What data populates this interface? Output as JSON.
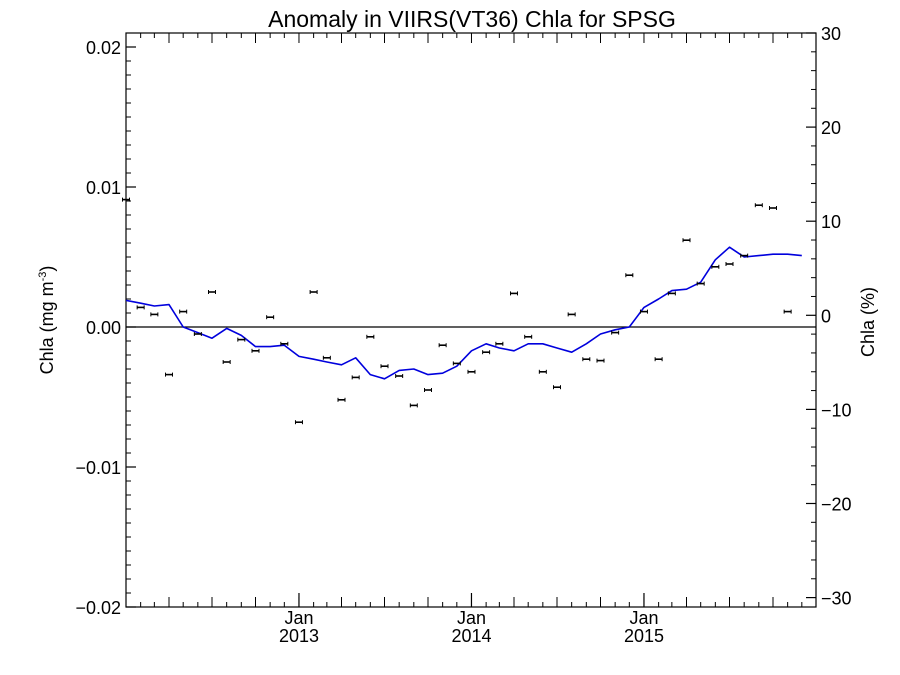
{
  "chart_data": {
    "type": "line",
    "title": "Anomaly in VIIRS(VT36) Chla for SPSG",
    "ylabel_left_main": "Chla (mg m",
    "ylabel_left_sup": "-3",
    "ylabel_left_close": ")",
    "ylabel_right": "Chla (%)",
    "xlim": [
      "2012-01-01",
      "2015-12-31"
    ],
    "ylim_left": [
      -0.02,
      0.021
    ],
    "ylim_right": [
      -31,
      30
    ],
    "y_ticks_left": [
      {
        "value": -0.02,
        "label": "−0.02"
      },
      {
        "value": -0.01,
        "label": "−0.01"
      },
      {
        "value": 0.0,
        "label": "0.00"
      },
      {
        "value": 0.01,
        "label": "0.01"
      },
      {
        "value": 0.02,
        "label": "0.02"
      }
    ],
    "y_ticks_right": [
      {
        "value": -30,
        "label": "−30"
      },
      {
        "value": -20,
        "label": "−20"
      },
      {
        "value": -10,
        "label": "−10"
      },
      {
        "value": 0,
        "label": "0"
      },
      {
        "value": 10,
        "label": "10"
      },
      {
        "value": 20,
        "label": "20"
      },
      {
        "value": 30,
        "label": "30"
      }
    ],
    "x_ticks": [
      {
        "date": "2013-01-01",
        "month": "Jan",
        "year": "2013"
      },
      {
        "date": "2014-01-01",
        "month": "Jan",
        "year": "2014"
      },
      {
        "date": "2015-01-01",
        "month": "Jan",
        "year": "2015"
      }
    ],
    "zero_line": 0,
    "colors": {
      "line": "#0000dd",
      "points": "#000000",
      "axes": "#000000"
    },
    "series": [
      {
        "kind": "points_with_error_bars",
        "axis": "left",
        "points": [
          {
            "x": "2012-01-01",
            "y": 0.0091
          },
          {
            "x": "2012-02-01",
            "y": 0.0014
          },
          {
            "x": "2012-03-01",
            "y": 0.0009
          },
          {
            "x": "2012-04-01",
            "y": -0.0034
          },
          {
            "x": "2012-05-01",
            "y": 0.0011
          },
          {
            "x": "2012-06-01",
            "y": -0.0005
          },
          {
            "x": "2012-07-01",
            "y": 0.0025
          },
          {
            "x": "2012-08-01",
            "y": -0.0025
          },
          {
            "x": "2012-09-01",
            "y": -0.0009
          },
          {
            "x": "2012-10-01",
            "y": -0.0017
          },
          {
            "x": "2012-11-01",
            "y": 0.0007
          },
          {
            "x": "2012-12-01",
            "y": -0.0012
          },
          {
            "x": "2013-01-01",
            "y": -0.0068
          },
          {
            "x": "2013-02-01",
            "y": 0.0025
          },
          {
            "x": "2013-03-01",
            "y": -0.0022
          },
          {
            "x": "2013-04-01",
            "y": -0.0052
          },
          {
            "x": "2013-05-01",
            "y": -0.0036
          },
          {
            "x": "2013-06-01",
            "y": -0.0007
          },
          {
            "x": "2013-07-01",
            "y": -0.0028
          },
          {
            "x": "2013-08-01",
            "y": -0.0035
          },
          {
            "x": "2013-09-01",
            "y": -0.0056
          },
          {
            "x": "2013-10-01",
            "y": -0.0045
          },
          {
            "x": "2013-11-01",
            "y": -0.0013
          },
          {
            "x": "2013-12-01",
            "y": -0.0026
          },
          {
            "x": "2014-01-01",
            "y": -0.0032
          },
          {
            "x": "2014-02-01",
            "y": -0.0018
          },
          {
            "x": "2014-03-01",
            "y": -0.0012
          },
          {
            "x": "2014-04-01",
            "y": 0.0024
          },
          {
            "x": "2014-05-01",
            "y": -0.0007
          },
          {
            "x": "2014-06-01",
            "y": -0.0032
          },
          {
            "x": "2014-07-01",
            "y": -0.0043
          },
          {
            "x": "2014-08-01",
            "y": 0.0009
          },
          {
            "x": "2014-09-01",
            "y": -0.0023
          },
          {
            "x": "2014-10-01",
            "y": -0.0024
          },
          {
            "x": "2014-11-01",
            "y": -0.0004
          },
          {
            "x": "2014-12-01",
            "y": 0.0037
          },
          {
            "x": "2015-01-01",
            "y": 0.0011
          },
          {
            "x": "2015-02-01",
            "y": -0.0023
          },
          {
            "x": "2015-03-01",
            "y": 0.0024
          },
          {
            "x": "2015-04-01",
            "y": 0.0062
          },
          {
            "x": "2015-05-01",
            "y": 0.0031
          },
          {
            "x": "2015-06-01",
            "y": 0.0043
          },
          {
            "x": "2015-07-01",
            "y": 0.0045
          },
          {
            "x": "2015-08-01",
            "y": 0.0051
          },
          {
            "x": "2015-09-01",
            "y": 0.0087
          },
          {
            "x": "2015-10-01",
            "y": 0.0085
          },
          {
            "x": "2015-11-01",
            "y": 0.0011
          }
        ]
      },
      {
        "kind": "line",
        "axis": "left",
        "points": [
          {
            "x": "2012-01-01",
            "y": 0.0019
          },
          {
            "x": "2012-02-01",
            "y": 0.0017
          },
          {
            "x": "2012-03-01",
            "y": 0.0015
          },
          {
            "x": "2012-04-01",
            "y": 0.0016
          },
          {
            "x": "2012-05-01",
            "y": 0.0
          },
          {
            "x": "2012-06-01",
            "y": -0.0004
          },
          {
            "x": "2012-07-01",
            "y": -0.0008
          },
          {
            "x": "2012-08-01",
            "y": -0.0001
          },
          {
            "x": "2012-09-01",
            "y": -0.0006
          },
          {
            "x": "2012-10-01",
            "y": -0.0014
          },
          {
            "x": "2012-11-01",
            "y": -0.0014
          },
          {
            "x": "2012-12-01",
            "y": -0.0013
          },
          {
            "x": "2013-01-01",
            "y": -0.0021
          },
          {
            "x": "2013-02-01",
            "y": -0.0023
          },
          {
            "x": "2013-03-01",
            "y": -0.0025
          },
          {
            "x": "2013-04-01",
            "y": -0.0027
          },
          {
            "x": "2013-05-01",
            "y": -0.0022
          },
          {
            "x": "2013-06-01",
            "y": -0.0034
          },
          {
            "x": "2013-07-01",
            "y": -0.0037
          },
          {
            "x": "2013-08-01",
            "y": -0.0031
          },
          {
            "x": "2013-09-01",
            "y": -0.003
          },
          {
            "x": "2013-10-01",
            "y": -0.0034
          },
          {
            "x": "2013-11-01",
            "y": -0.0033
          },
          {
            "x": "2013-12-01",
            "y": -0.0028
          },
          {
            "x": "2014-01-01",
            "y": -0.0017
          },
          {
            "x": "2014-02-01",
            "y": -0.0012
          },
          {
            "x": "2014-03-01",
            "y": -0.0015
          },
          {
            "x": "2014-04-01",
            "y": -0.0017
          },
          {
            "x": "2014-05-01",
            "y": -0.0012
          },
          {
            "x": "2014-06-01",
            "y": -0.0012
          },
          {
            "x": "2014-07-01",
            "y": -0.0015
          },
          {
            "x": "2014-08-01",
            "y": -0.0018
          },
          {
            "x": "2014-09-01",
            "y": -0.0012
          },
          {
            "x": "2014-10-01",
            "y": -0.0005
          },
          {
            "x": "2014-11-01",
            "y": -0.0002
          },
          {
            "x": "2014-12-01",
            "y": 0.0
          },
          {
            "x": "2015-01-01",
            "y": 0.0014
          },
          {
            "x": "2015-02-01",
            "y": 0.002
          },
          {
            "x": "2015-03-01",
            "y": 0.0026
          },
          {
            "x": "2015-04-01",
            "y": 0.0027
          },
          {
            "x": "2015-05-01",
            "y": 0.0032
          },
          {
            "x": "2015-06-01",
            "y": 0.0048
          },
          {
            "x": "2015-07-01",
            "y": 0.0057
          },
          {
            "x": "2015-08-01",
            "y": 0.005
          },
          {
            "x": "2015-09-01",
            "y": 0.0051
          },
          {
            "x": "2015-10-01",
            "y": 0.0052
          },
          {
            "x": "2015-11-01",
            "y": 0.0052
          },
          {
            "x": "2015-12-01",
            "y": 0.0051
          }
        ]
      }
    ]
  }
}
